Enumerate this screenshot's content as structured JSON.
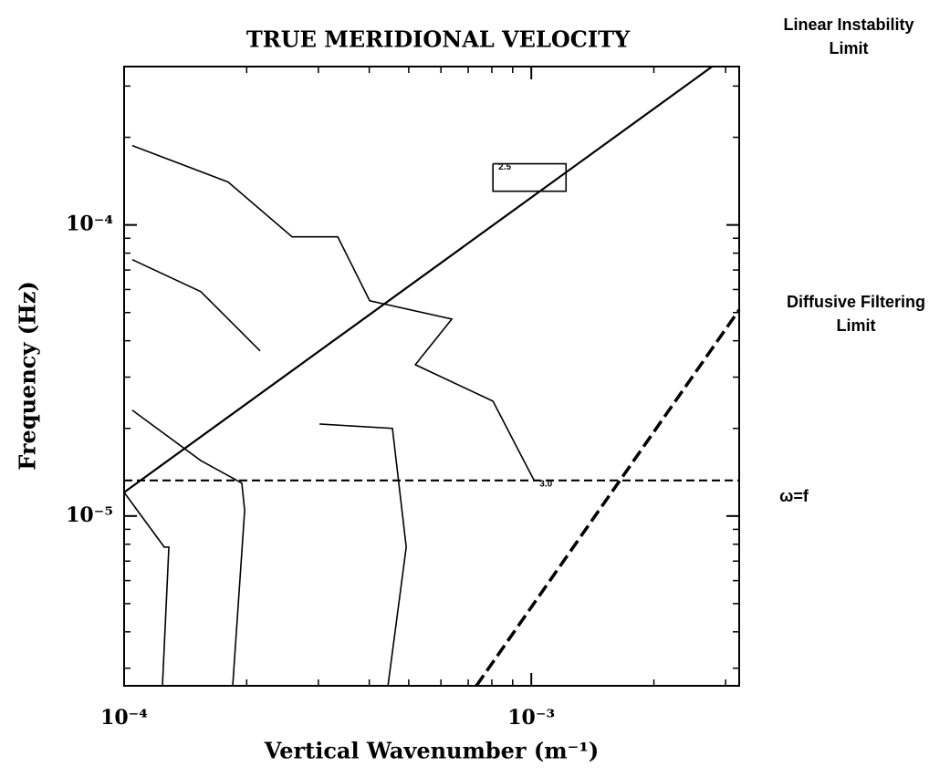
{
  "chart_data": {
    "type": "line",
    "title": "TRUE MERIDIONAL VELOCITY",
    "x_label": "Vertical Wavenumber (m⁻¹)",
    "y_label": "Frequency (Hz)",
    "log_x": true,
    "log_y": true,
    "xlim": [
      0.0001,
      0.00324
    ],
    "ylim": [
      2.61e-06,
      0.00035
    ],
    "xticks": [
      {
        "value": 0.0001,
        "label": "10⁻⁴"
      },
      {
        "value": 0.001,
        "label": "10⁻³"
      }
    ],
    "yticks": [
      {
        "value": 1e-05,
        "label": "10⁻⁵"
      },
      {
        "value": 0.0001,
        "label": "10⁻⁴"
      }
    ],
    "xminor": [
      0.0002,
      0.0003,
      0.0004,
      0.0005,
      0.0006,
      0.0007,
      0.0008,
      0.0009,
      0.002,
      0.003
    ],
    "yminor": [
      3e-06,
      4e-06,
      5e-06,
      6e-06,
      7e-06,
      8e-06,
      9e-06,
      2e-05,
      3e-05,
      4e-05,
      5e-05,
      6e-05,
      7e-05,
      8e-05,
      9e-05,
      0.0002,
      0.0003
    ],
    "series": [
      {
        "name": "Linear Instability Limit",
        "color": "#000000",
        "dash": false,
        "x": [
          0.0001,
          0.00278
        ],
        "values": [
          1.206e-05,
          0.00035
        ]
      },
      {
        "name": "Diffusive Filtering Limit",
        "color": "#000000",
        "dash": true,
        "x": [
          0.000733,
          0.00324
        ],
        "values": [
          2.61e-06,
          5.11e-05
        ]
      },
      {
        "name": "ω=f",
        "color": "#000000",
        "dash": true,
        "x": [
          0.0001,
          0.00324
        ],
        "values": [
          1.325e-05,
          1.325e-05
        ]
      }
    ],
    "contours": [
      {
        "x": [
          0.0001047,
          0.0001543,
          0.0001946,
          0.0001977,
          0.0001848
        ],
        "y": [
          2.31e-05,
          1.55e-05,
          1.297e-05,
          1.044e-05,
          2.61e-06
        ]
      },
      {
        "x": [
          0.0001,
          0.0001255,
          0.0001288,
          0.0001242
        ],
        "y": [
          1.206e-05,
          7.82e-06,
          7.82e-06,
          2.61e-06
        ]
      },
      {
        "x": [
          0.0003019,
          0.000456,
          0.000493,
          0.0004446
        ],
        "y": [
          2.07e-05,
          2e-05,
          7.82e-06,
          2.61e-06
        ]
      },
      {
        "x": [
          0.0001047,
          0.0001543,
          0.0002158
        ],
        "y": [
          7.6e-05,
          5.9e-05,
          3.69e-05
        ]
      },
      {
        "x": [
          0.0001047,
          0.0001801,
          0.0002586,
          0.0003347,
          0.000401,
          0.000638,
          0.000519,
          0.000805,
          0.001016
        ],
        "y": [
          0.0001874,
          0.0001404,
          9.1e-05,
          9.1e-05,
          5.49e-05,
          4.75e-05,
          3.31e-05,
          2.48e-05,
          1.325e-05
        ],
        "label": "3.0"
      },
      {
        "x": [
          0.000805,
          0.001217,
          0.001217,
          0.000805,
          0.000805
        ],
        "y": [
          0.0001622,
          0.0001622,
          0.0001306,
          0.0001306,
          0.0001622
        ],
        "label": "2.5"
      }
    ]
  }
}
